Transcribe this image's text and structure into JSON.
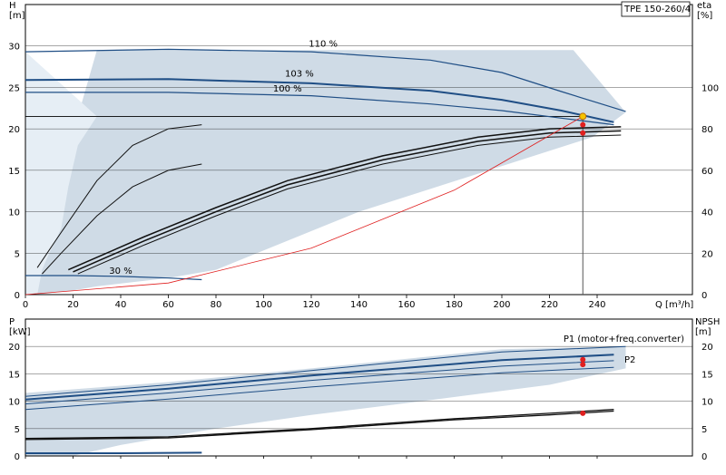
{
  "model_label": "TPE 150-260/4",
  "colors": {
    "band": "#cfdbe6",
    "band_light": "#e6eef5",
    "curve_blue": "#1f4e85",
    "curve_black": "#111111",
    "system_curve": "#e02020",
    "duty_point": "#e02020",
    "duty_point_top": "#f5c400",
    "grid": "#000000"
  },
  "chart_data": [
    {
      "type": "line",
      "panel": "head_efficiency",
      "xlabel": "Q [m³/h]",
      "ylabel": "H\n[m]",
      "ylabel_right": "eta\n[%]",
      "xlim": [
        0,
        280
      ],
      "ylim": [
        0,
        35
      ],
      "ylim_right": [
        0,
        140
      ],
      "x_ticks": [
        "0",
        "20",
        "40",
        "60",
        "80",
        "100",
        "120",
        "140",
        "160",
        "180",
        "200",
        "220",
        "240"
      ],
      "y_ticks": [
        "0",
        "5",
        "10",
        "15",
        "20",
        "25",
        "30"
      ],
      "y_ticks_right": [
        "0",
        "20",
        "40",
        "60",
        "80",
        "100"
      ],
      "annotations": [
        "110 %",
        "103 %",
        "100 %",
        "30 %"
      ],
      "band_outline": {
        "name": "operating range",
        "x": [
          5,
          7,
          10,
          15,
          18,
          22,
          30,
          230,
          252,
          238,
          140,
          80,
          60,
          45,
          30,
          20,
          5
        ],
        "y": [
          3,
          5,
          8,
          13,
          18,
          21.5,
          29.5,
          29.5,
          22,
          19,
          10,
          3,
          2,
          1.5,
          1,
          0.5,
          0
        ]
      },
      "series": [
        {
          "curve": "head",
          "label": "110 %",
          "x": [
            0,
            60,
            120,
            170,
            200,
            225,
            252
          ],
          "y": [
            29.3,
            29.6,
            29.3,
            28.3,
            26.8,
            24.5,
            22.1
          ]
        },
        {
          "curve": "head",
          "label": "103 %",
          "x": [
            0,
            60,
            120,
            170,
            200,
            225,
            247
          ],
          "y": [
            25.9,
            26.0,
            25.5,
            24.6,
            23.5,
            22.2,
            20.8
          ]
        },
        {
          "curve": "head",
          "label": "100 %",
          "x": [
            0,
            60,
            120,
            170,
            200,
            225,
            247
          ],
          "y": [
            24.4,
            24.4,
            24.0,
            23.0,
            22.2,
            21.3,
            20.5
          ]
        },
        {
          "curve": "head",
          "label": "30 %",
          "x": [
            0,
            20,
            40,
            60,
            74
          ],
          "y": [
            2.3,
            2.3,
            2.2,
            2.0,
            1.8
          ]
        },
        {
          "curve": "efficiency",
          "x": [
            18,
            50,
            80,
            110,
            150,
            190,
            220,
            250
          ],
          "y": [
            12,
            28,
            42,
            55,
            67,
            76,
            80,
            81
          ]
        },
        {
          "curve": "efficiency",
          "x": [
            20,
            50,
            80,
            110,
            150,
            190,
            220,
            250
          ],
          "y": [
            11,
            26,
            40,
            53,
            65,
            74,
            78,
            79
          ]
        },
        {
          "curve": "efficiency",
          "x": [
            22,
            50,
            80,
            110,
            150,
            190,
            220,
            250
          ],
          "y": [
            10,
            24,
            38,
            51,
            63,
            72,
            76,
            77
          ]
        },
        {
          "curve": "efficiency",
          "x": [
            5,
            15,
            30,
            45,
            60,
            74
          ],
          "y": [
            13,
            30,
            55,
            72,
            80,
            82
          ]
        },
        {
          "curve": "efficiency",
          "x": [
            7,
            15,
            30,
            45,
            60,
            74
          ],
          "y": [
            10,
            20,
            38,
            52,
            60,
            63
          ]
        },
        {
          "curve": "system",
          "x": [
            0,
            60,
            120,
            180,
            234
          ],
          "y": [
            0,
            1.4,
            5.6,
            12.6,
            21.5
          ]
        }
      ],
      "duty_point": {
        "x": 234,
        "y": 21.5
      },
      "duty_points_efficiency": [
        {
          "x": 234,
          "y": 82
        },
        {
          "x": 234,
          "y": 78
        }
      ]
    },
    {
      "type": "line",
      "panel": "power_npsh",
      "ylabel": "P\n[kW]",
      "ylabel_right": "NPSH\n[m]",
      "xlim": [
        0,
        280
      ],
      "ylim": [
        0,
        25
      ],
      "ylim_right": [
        0,
        25
      ],
      "y_ticks": [
        "0",
        "5",
        "10",
        "15",
        "20"
      ],
      "y_ticks_right": [
        "0",
        "5",
        "10",
        "15",
        "20"
      ],
      "annotations": [
        "P1 (motor+freq.converter)",
        "P2"
      ],
      "series": [
        {
          "curve": "power",
          "label": "P1 (motor+freq.converter)",
          "x": [
            0,
            60,
            120,
            200,
            252
          ],
          "y": [
            10.9,
            13,
            15.6,
            19,
            20
          ]
        },
        {
          "curve": "power",
          "x": [
            0,
            60,
            120,
            200,
            247
          ],
          "y": [
            10.3,
            12.3,
            14.7,
            17.5,
            18.5
          ]
        },
        {
          "curve": "power",
          "label": "P2",
          "x": [
            0,
            60,
            120,
            200,
            247
          ],
          "y": [
            9.5,
            11.5,
            13.8,
            16.4,
            17.4
          ]
        },
        {
          "curve": "power",
          "x": [
            0,
            60,
            120,
            200,
            247
          ],
          "y": [
            8.5,
            10.4,
            12.6,
            15.2,
            16.2
          ]
        },
        {
          "curve": "power",
          "x": [
            0,
            40,
            74
          ],
          "y": [
            0.5,
            0.5,
            0.6
          ]
        },
        {
          "curve": "npsh",
          "x": [
            0,
            60,
            120,
            180,
            220,
            247
          ],
          "y": [
            3.2,
            3.5,
            5,
            6.8,
            7.8,
            8.5
          ]
        },
        {
          "curve": "npsh",
          "x": [
            0,
            60,
            120,
            180,
            220,
            247
          ],
          "y": [
            3.0,
            3.3,
            4.8,
            6.6,
            7.5,
            8.2
          ]
        }
      ],
      "duty_points": [
        {
          "x": 234,
          "y": 17.6
        },
        {
          "x": 234,
          "y": 16.7
        },
        {
          "x": 234,
          "y": 7.8
        }
      ]
    }
  ]
}
